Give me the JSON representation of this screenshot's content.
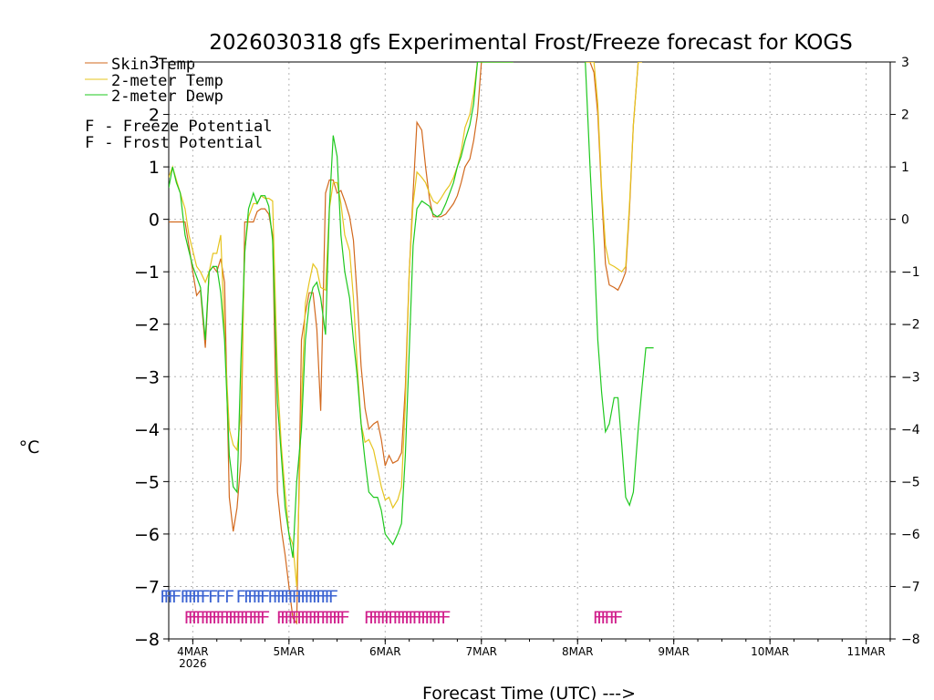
{
  "chart_data": {
    "type": "line",
    "title": "2026030318 gfs Experimental Frost/Freeze forecast for KOGS",
    "ylabel": "°C",
    "xlabel": "Forecast Time (UTC) --->",
    "ylim": [
      -8,
      3
    ],
    "yticks": [
      -8,
      -7,
      -6,
      -5,
      -4,
      -3,
      -2,
      -1,
      0,
      1,
      2,
      3
    ],
    "x_unit": "days since 2026-03-04 00Z",
    "xlim": [
      -0.25,
      7.25
    ],
    "xticks": [
      {
        "x": 0,
        "label": "4MAR",
        "sublabel": "2026"
      },
      {
        "x": 1,
        "label": "5MAR",
        "sublabel": ""
      },
      {
        "x": 2,
        "label": "6MAR",
        "sublabel": ""
      },
      {
        "x": 3,
        "label": "7MAR",
        "sublabel": ""
      },
      {
        "x": 4,
        "label": "8MAR",
        "sublabel": ""
      },
      {
        "x": 5,
        "label": "9MAR",
        "sublabel": ""
      },
      {
        "x": 6,
        "label": "10MAR",
        "sublabel": ""
      },
      {
        "x": 7,
        "label": "11MAR",
        "sublabel": ""
      }
    ],
    "grid": true,
    "legend": {
      "placement": "top-left",
      "entries": [
        {
          "label": "Skin Temp",
          "color": "#d2691e"
        },
        {
          "label": "2-meter Temp",
          "color": "#e6c41e"
        },
        {
          "label": "2-meter Dewp",
          "color": "#1ec81e"
        }
      ],
      "markers": [
        {
          "glyph": "F",
          "text": " - Freeze Potential",
          "color": "#d01f8c"
        },
        {
          "glyph": "F",
          "text": " - Frost Potential",
          "color": "#3c64d2"
        }
      ]
    },
    "series": [
      {
        "name": "Skin Temp",
        "color": "#d2691e",
        "segments": [
          {
            "x": [
              -0.25,
              -0.21,
              -0.17,
              -0.13,
              -0.08,
              -0.04,
              0.0,
              0.04,
              0.08,
              0.13,
              0.17,
              0.21,
              0.25,
              0.29,
              0.33,
              0.38,
              0.42,
              0.46,
              0.5,
              0.54,
              0.58,
              0.63,
              0.67,
              0.71,
              0.75,
              0.79,
              0.83,
              0.88,
              0.92,
              0.96,
              1.0,
              1.04,
              1.08,
              1.13,
              1.17,
              1.21,
              1.25,
              1.29,
              1.33,
              1.38,
              1.42,
              1.46,
              1.5,
              1.54,
              1.58,
              1.63,
              1.67,
              1.71,
              1.75,
              1.79,
              1.83,
              1.88,
              1.92,
              1.96,
              2.0,
              2.04,
              2.08,
              2.13,
              2.17,
              2.21,
              2.25,
              2.29,
              2.33,
              2.38,
              2.42,
              2.46,
              2.5,
              2.54,
              2.58,
              2.63,
              2.67,
              2.71,
              2.75,
              2.79,
              2.83,
              2.88,
              2.92,
              2.96,
              3.0,
              3.04,
              3.08,
              3.13,
              3.17,
              3.21,
              3.25,
              3.29,
              3.33
            ],
            "y": [
              -0.05,
              -0.05,
              -0.05,
              -0.05,
              -0.05,
              -0.5,
              -1.0,
              -1.45,
              -1.35,
              -2.45,
              -1.0,
              -0.9,
              -1.0,
              -0.75,
              -1.2,
              -5.3,
              -5.95,
              -5.5,
              -4.6,
              -0.05,
              -0.05,
              -0.05,
              0.15,
              0.2,
              0.2,
              0.1,
              -0.3,
              -5.2,
              -5.9,
              -6.4,
              -7.0,
              -7.6,
              -7.7,
              -2.3,
              -1.8,
              -1.4,
              -1.4,
              -2.1,
              -3.65,
              0.5,
              0.75,
              0.75,
              0.5,
              0.55,
              0.35,
              0.05,
              -0.4,
              -1.5,
              -2.8,
              -3.6,
              -4.0,
              -3.9,
              -3.85,
              -4.2,
              -4.7,
              -4.5,
              -4.65,
              -4.6,
              -4.45,
              -3.2,
              -1.0,
              0.5,
              1.85,
              1.7,
              1.0,
              0.4,
              0.05,
              0.05,
              0.05,
              0.1,
              0.2,
              0.3,
              0.45,
              0.7,
              1.0,
              1.15,
              1.5,
              2.0,
              3.0,
              3.0,
              3.0,
              3.0,
              3.0,
              3.0,
              3.0,
              3.0,
              3.0
            ]
          },
          {
            "x": [
              4.08,
              4.13,
              4.17,
              4.21,
              4.25,
              4.29,
              4.33,
              4.38,
              4.42,
              4.46,
              4.5,
              4.54,
              4.58,
              4.63,
              4.67
            ],
            "y": [
              3.0,
              3.0,
              2.8,
              2.0,
              0.5,
              -0.85,
              -1.25,
              -1.3,
              -1.35,
              -1.2,
              -1.0,
              0.2,
              1.8,
              3.0,
              3.0
            ]
          }
        ]
      },
      {
        "name": "2-meter Temp",
        "color": "#e6c41e",
        "segments": [
          {
            "x": [
              -0.25,
              -0.21,
              -0.17,
              -0.13,
              -0.08,
              -0.04,
              0.0,
              0.04,
              0.08,
              0.13,
              0.17,
              0.21,
              0.25,
              0.29,
              0.33,
              0.38,
              0.42,
              0.46,
              0.5,
              0.54,
              0.58,
              0.63,
              0.67,
              0.71,
              0.75,
              0.79,
              0.83,
              0.88,
              0.92,
              0.96,
              1.0,
              1.04,
              1.08,
              1.13,
              1.17,
              1.21,
              1.25,
              1.29,
              1.33,
              1.38,
              1.42,
              1.46,
              1.5,
              1.54,
              1.58,
              1.63,
              1.67,
              1.71,
              1.75,
              1.79,
              1.83,
              1.88,
              1.92,
              1.96,
              2.0,
              2.04,
              2.08,
              2.13,
              2.17,
              2.21,
              2.25,
              2.29,
              2.33,
              2.38,
              2.42,
              2.46,
              2.5,
              2.54,
              2.58,
              2.63,
              2.67,
              2.71,
              2.75,
              2.79,
              2.83,
              2.88,
              2.92,
              2.96,
              3.0,
              3.04,
              3.08,
              3.13,
              3.17,
              3.21,
              3.25,
              3.29,
              3.33
            ],
            "y": [
              0.8,
              1.0,
              0.75,
              0.5,
              0.2,
              -0.3,
              -0.6,
              -0.9,
              -1.0,
              -1.2,
              -1.0,
              -0.65,
              -0.65,
              -0.3,
              -2.2,
              -4.0,
              -4.3,
              -4.4,
              -3.7,
              -0.6,
              0.05,
              0.3,
              0.3,
              0.45,
              0.4,
              0.4,
              0.35,
              -3.0,
              -4.3,
              -5.2,
              -6.0,
              -6.2,
              -7.0,
              -3.5,
              -1.6,
              -1.2,
              -0.85,
              -0.95,
              -1.3,
              -1.35,
              0.2,
              0.7,
              0.7,
              0.3,
              -0.3,
              -0.6,
              -1.5,
              -2.8,
              -3.9,
              -4.25,
              -4.2,
              -4.4,
              -4.75,
              -5.1,
              -5.35,
              -5.3,
              -5.5,
              -5.35,
              -5.1,
              -3.5,
              -1.0,
              0.3,
              0.9,
              0.8,
              0.7,
              0.5,
              0.35,
              0.3,
              0.4,
              0.55,
              0.65,
              0.8,
              1.0,
              1.3,
              1.75,
              2.0,
              2.4,
              3.0,
              3.0,
              3.0,
              3.0,
              3.0,
              3.0,
              3.0,
              3.0,
              3.0,
              3.0
            ]
          },
          {
            "x": [
              4.08,
              4.13,
              4.17,
              4.21,
              4.25,
              4.29,
              4.33,
              4.38,
              4.42,
              4.46,
              4.5,
              4.54,
              4.58,
              4.63,
              4.67
            ],
            "y": [
              3.0,
              3.0,
              3.0,
              2.2,
              0.6,
              -0.5,
              -0.85,
              -0.9,
              -0.95,
              -1.0,
              -0.9,
              0.3,
              1.8,
              3.0,
              3.0
            ]
          }
        ]
      },
      {
        "name": "2-meter Dewp",
        "color": "#1ec81e",
        "segments": [
          {
            "x": [
              -0.25,
              -0.21,
              -0.17,
              -0.13,
              -0.08,
              -0.04,
              0.0,
              0.04,
              0.08,
              0.13,
              0.17,
              0.21,
              0.25,
              0.29,
              0.33,
              0.38,
              0.42,
              0.46,
              0.5,
              0.54,
              0.58,
              0.63,
              0.67,
              0.71,
              0.75,
              0.79,
              0.83,
              0.88,
              0.92,
              0.96,
              1.0,
              1.04,
              1.08,
              1.13,
              1.17,
              1.21,
              1.25,
              1.29,
              1.33,
              1.38,
              1.42,
              1.46,
              1.5,
              1.54,
              1.58,
              1.63,
              1.67,
              1.71,
              1.75,
              1.79,
              1.83,
              1.88,
              1.92,
              1.96,
              2.0,
              2.04,
              2.08,
              2.13,
              2.17,
              2.21,
              2.25,
              2.29,
              2.33,
              2.38,
              2.42,
              2.46,
              2.5,
              2.54,
              2.58,
              2.63,
              2.67,
              2.71,
              2.75,
              2.79,
              2.83,
              2.88,
              2.92,
              2.96,
              3.0,
              3.04,
              3.08,
              3.13,
              3.17,
              3.21,
              3.25,
              3.29,
              3.33
            ],
            "y": [
              0.6,
              1.0,
              0.7,
              0.5,
              -0.3,
              -0.6,
              -0.9,
              -1.1,
              -1.3,
              -2.3,
              -1.0,
              -0.9,
              -0.9,
              -1.4,
              -2.3,
              -4.5,
              -5.1,
              -5.2,
              -2.7,
              -0.65,
              0.2,
              0.5,
              0.3,
              0.45,
              0.45,
              0.25,
              -0.4,
              -3.5,
              -4.5,
              -5.5,
              -6.0,
              -6.45,
              -5.0,
              -4.0,
              -2.3,
              -1.6,
              -1.3,
              -1.2,
              -1.5,
              -2.2,
              0.2,
              1.6,
              1.2,
              -0.3,
              -1.0,
              -1.5,
              -2.3,
              -3.0,
              -3.9,
              -4.6,
              -5.2,
              -5.3,
              -5.3,
              -5.55,
              -6.0,
              -6.1,
              -6.2,
              -6.0,
              -5.8,
              -4.5,
              -2.5,
              -0.5,
              0.2,
              0.35,
              0.3,
              0.25,
              0.1,
              0.05,
              0.1,
              0.3,
              0.5,
              0.7,
              1.0,
              1.2,
              1.5,
              1.8,
              2.2,
              3.0,
              3.0,
              3.0,
              3.0,
              3.0,
              3.0,
              3.0,
              3.0,
              3.0,
              3.0
            ]
          },
          {
            "x": [
              4.08,
              4.13,
              4.17,
              4.21,
              4.25,
              4.29,
              4.33,
              4.38,
              4.42,
              4.46,
              4.5,
              4.54,
              4.58,
              4.63,
              4.67,
              4.71,
              4.75,
              4.79
            ],
            "y": [
              3.0,
              1.0,
              -0.5,
              -2.3,
              -3.3,
              -4.05,
              -3.9,
              -3.4,
              -3.4,
              -4.3,
              -5.3,
              -5.45,
              -5.2,
              -4.0,
              -3.2,
              -2.45,
              -2.45,
              -2.45
            ]
          }
        ]
      }
    ],
    "frost_potential": {
      "color": "#3c64d2",
      "y": -7.15,
      "glyph": "F",
      "x": [
        -0.29,
        -0.25,
        -0.21,
        -0.17,
        -0.08,
        -0.04,
        0.0,
        0.04,
        0.08,
        0.13,
        0.21,
        0.29,
        0.38,
        0.5,
        0.58,
        0.62,
        0.67,
        0.71,
        0.75,
        0.83,
        0.88,
        0.92,
        0.96,
        1.0,
        1.04,
        1.08,
        1.13,
        1.17,
        1.21,
        1.25,
        1.29,
        1.33,
        1.38,
        1.42,
        1.46
      ]
    },
    "freeze_potential": {
      "color": "#d01f8c",
      "y": -7.55,
      "glyph": "F",
      "x": [
        -0.04,
        0.0,
        0.04,
        0.08,
        0.13,
        0.17,
        0.21,
        0.25,
        0.29,
        0.33,
        0.38,
        0.42,
        0.46,
        0.5,
        0.54,
        0.58,
        0.63,
        0.67,
        0.71,
        0.75,
        0.92,
        0.96,
        1.0,
        1.04,
        1.08,
        1.13,
        1.17,
        1.21,
        1.25,
        1.29,
        1.33,
        1.38,
        1.42,
        1.46,
        1.5,
        1.54,
        1.58,
        1.83,
        1.88,
        1.92,
        1.96,
        2.0,
        2.04,
        2.08,
        2.13,
        2.17,
        2.21,
        2.25,
        2.29,
        2.33,
        2.38,
        2.42,
        2.46,
        2.5,
        2.54,
        2.58,
        2.63,
        4.21,
        4.25,
        4.29,
        4.33,
        4.38,
        4.42
      ]
    }
  }
}
